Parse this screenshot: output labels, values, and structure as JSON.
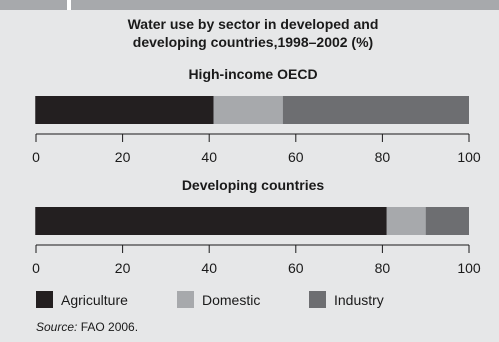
{
  "chart_data": {
    "type": "bar",
    "orientation": "horizontal",
    "stacked": true,
    "title": "Water use by sector in developed and developing countries,1998–2002 (%)",
    "title_lines": [
      "Water use by sector in developed and",
      "developing countries,1998–2002 (%)"
    ],
    "categories": [
      "High-income OECD",
      "Developing countries"
    ],
    "series": [
      {
        "name": "Agriculture",
        "color": "#231f20",
        "values": [
          41,
          81
        ]
      },
      {
        "name": "Domestic",
        "color": "#a7a9ac",
        "values": [
          16,
          9
        ]
      },
      {
        "name": "Industry",
        "color": "#6d6e71",
        "values": [
          43,
          10
        ]
      }
    ],
    "xlim": [
      0,
      100
    ],
    "ticks": [
      "0",
      "20",
      "40",
      "60",
      "80",
      "100"
    ],
    "grid": false,
    "legend_position": "bottom",
    "source_prefix": "Source:",
    "source_text": " FAO 2006."
  }
}
